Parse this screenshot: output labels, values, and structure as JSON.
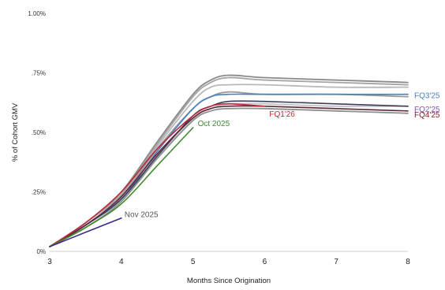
{
  "chart_data": {
    "type": "line",
    "title": "",
    "xlabel": "Months Since Origination",
    "ylabel": "% of Cohort GMV",
    "xlim": [
      3,
      8
    ],
    "ylim": [
      0,
      1.0
    ],
    "x_ticks": [
      3,
      4,
      5,
      6,
      7,
      8
    ],
    "x_tick_labels": [
      "3",
      "4",
      "5",
      "6",
      "7",
      "8"
    ],
    "y_ticks": [
      0,
      0.25,
      0.5,
      0.75,
      1.0
    ],
    "y_tick_labels": [
      "0%",
      ".25%",
      ".50%",
      ".75%",
      "1.00%"
    ],
    "grid": false,
    "legend": "inline labels",
    "series": [
      {
        "color": "#8a8a8a",
        "x": [
          3,
          3.5,
          4,
          4.5,
          5,
          5.25,
          5.5,
          6,
          7,
          8
        ],
        "y": [
          0.02,
          0.12,
          0.25,
          0.46,
          0.66,
          0.72,
          0.74,
          0.73,
          0.72,
          0.71
        ]
      },
      {
        "color": "#a5a5a5",
        "x": [
          3,
          3.5,
          4,
          4.5,
          5,
          5.25,
          5.5,
          6,
          7,
          8
        ],
        "y": [
          0.02,
          0.12,
          0.24,
          0.45,
          0.65,
          0.71,
          0.73,
          0.72,
          0.71,
          0.7
        ]
      },
      {
        "color": "#b8b8b8",
        "x": [
          3,
          3.5,
          4,
          4.5,
          5,
          5.25,
          5.5,
          6,
          7,
          8
        ],
        "y": [
          0.02,
          0.11,
          0.23,
          0.44,
          0.63,
          0.69,
          0.7,
          0.7,
          0.69,
          0.69
        ]
      },
      {
        "color": "#9b9b9b",
        "x": [
          3,
          3.5,
          4,
          4.5,
          5,
          5.25,
          5.5,
          6,
          7,
          8
        ],
        "y": [
          0.02,
          0.11,
          0.23,
          0.43,
          0.6,
          0.65,
          0.67,
          0.66,
          0.66,
          0.65
        ]
      },
      {
        "color": "#c4c4c4",
        "x": [
          3,
          3.5,
          4,
          4.5,
          5,
          5.25,
          5.5,
          6,
          7,
          8
        ],
        "y": [
          0.02,
          0.11,
          0.22,
          0.4,
          0.56,
          0.6,
          0.62,
          0.62,
          0.61,
          0.61
        ]
      },
      {
        "color": "#8f8f8f",
        "x": [
          3,
          3.5,
          4,
          4.5,
          5,
          5.25,
          5.5,
          6,
          7,
          8
        ],
        "y": [
          0.02,
          0.1,
          0.21,
          0.39,
          0.55,
          0.59,
          0.6,
          0.6,
          0.59,
          0.58
        ]
      },
      {
        "name": "FQ3'25",
        "color": "#4a7fc0",
        "label_color": "#4a7fc0",
        "x": [
          3,
          3.5,
          4,
          4.5,
          5,
          5.25,
          5.5,
          6,
          7,
          8
        ],
        "y": [
          0.02,
          0.11,
          0.22,
          0.42,
          0.6,
          0.65,
          0.66,
          0.66,
          0.66,
          0.66
        ]
      },
      {
        "name": "FQ2'25",
        "color": "#3d3d5a",
        "label_color": "#7e55b8",
        "x": [
          3,
          3.5,
          4,
          4.5,
          5,
          5.25,
          5.5,
          6,
          7,
          8
        ],
        "y": [
          0.02,
          0.11,
          0.22,
          0.4,
          0.57,
          0.61,
          0.63,
          0.63,
          0.62,
          0.61
        ]
      },
      {
        "name": "FQ4'25",
        "color": "#5a2a3a",
        "label_color": "#8a1a2e",
        "x": [
          3,
          3.5,
          4,
          4.5,
          5,
          5.25,
          5.5,
          6,
          7,
          8
        ],
        "y": [
          0.02,
          0.11,
          0.23,
          0.41,
          0.56,
          0.6,
          0.61,
          0.61,
          0.6,
          0.59
        ]
      },
      {
        "name": "FQ1'26",
        "color": "#c0283a",
        "label_color": "#c0283a",
        "x": [
          3,
          3.5,
          4,
          4.5,
          5,
          5.25,
          5.5,
          6
        ],
        "y": [
          0.02,
          0.12,
          0.25,
          0.43,
          0.57,
          0.61,
          0.62,
          0.61
        ]
      },
      {
        "name": "Oct 2025",
        "color": "#3e8c2e",
        "label_color": "#3e8c2e",
        "x": [
          3,
          3.5,
          4,
          4.5,
          5
        ],
        "y": [
          0.02,
          0.1,
          0.2,
          0.36,
          0.52
        ]
      },
      {
        "name": "Nov 2025",
        "color": "#3a2a8a",
        "label_color": "#555555",
        "x": [
          3,
          3.5,
          4
        ],
        "y": [
          0.02,
          0.08,
          0.14
        ]
      }
    ]
  }
}
